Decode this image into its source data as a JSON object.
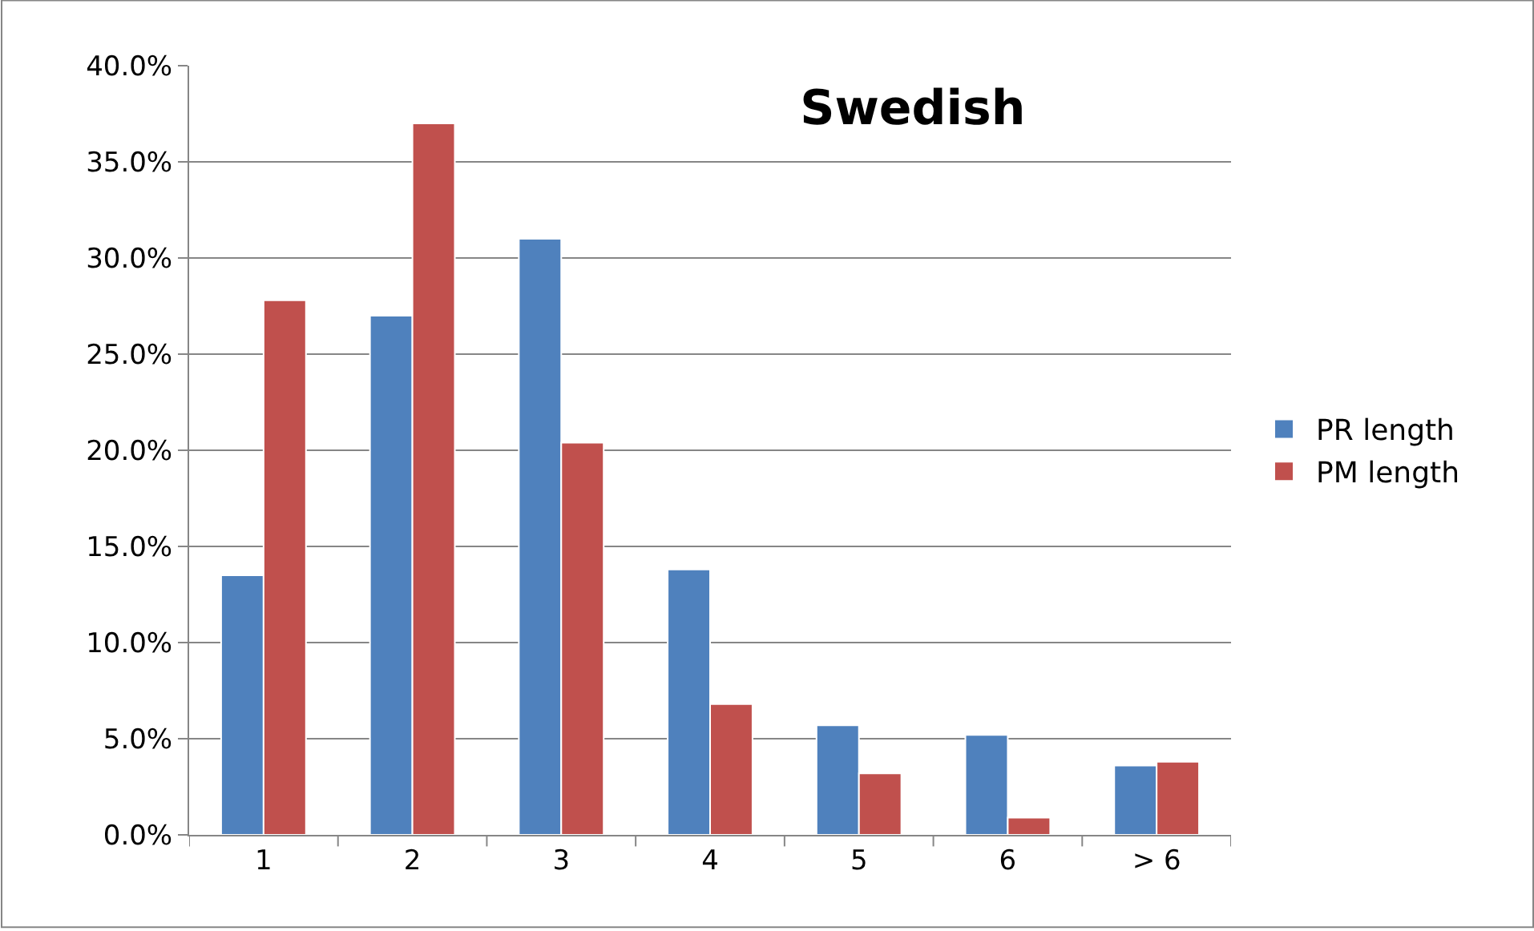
{
  "chart_data": {
    "type": "bar",
    "title": "Swedish",
    "categories": [
      "1",
      "2",
      "3",
      "4",
      "5",
      "6",
      "> 6"
    ],
    "series": [
      {
        "name": "PR length",
        "color": "#4f81bd",
        "values": [
          13.5,
          27.0,
          31.0,
          13.8,
          5.7,
          5.2,
          3.6
        ]
      },
      {
        "name": "PM length",
        "color": "#c0504d",
        "values": [
          27.8,
          37.0,
          20.4,
          6.8,
          3.2,
          0.9,
          3.8
        ]
      }
    ],
    "ylim": [
      0,
      40
    ],
    "yticks": [
      {
        "value": 0,
        "label": "0.0%"
      },
      {
        "value": 5,
        "label": "5.0%"
      },
      {
        "value": 10,
        "label": "10.0%"
      },
      {
        "value": 15,
        "label": "15.0%"
      },
      {
        "value": 20,
        "label": "20.0%"
      },
      {
        "value": 25,
        "label": "25.0%"
      },
      {
        "value": 30,
        "label": "30.0%"
      },
      {
        "value": 35,
        "label": "35.0%"
      },
      {
        "value": 40,
        "label": "40.0%"
      }
    ],
    "grid": "y",
    "legend": "right"
  }
}
